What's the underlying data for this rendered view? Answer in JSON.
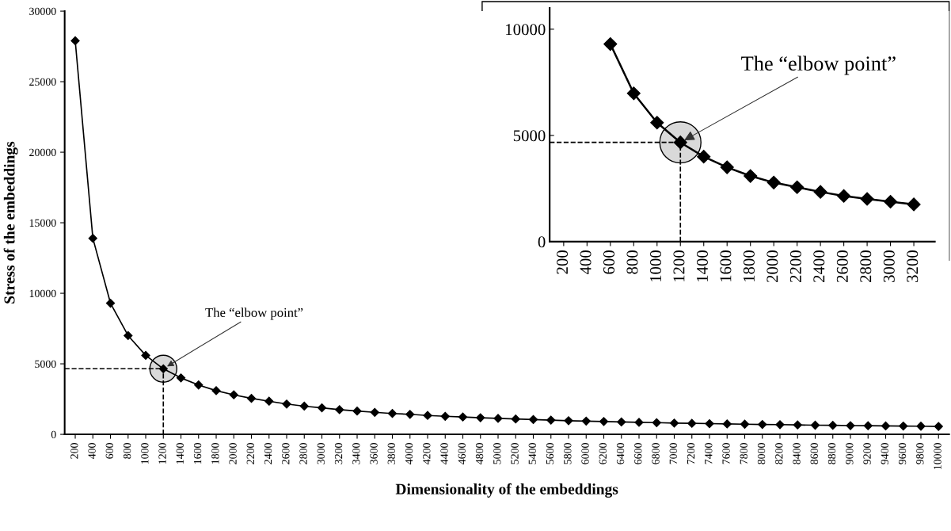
{
  "chart_data": [
    {
      "type": "line",
      "xlabel": "Dimensionality of the embeddings",
      "ylabel": "Stress of the embeddings",
      "categories": [
        "200",
        "400",
        "600",
        "800",
        "1000",
        "1200",
        "1400",
        "1600",
        "1800",
        "2000",
        "2200",
        "2400",
        "2600",
        "2800",
        "3000",
        "3200",
        "3400",
        "3600",
        "3800",
        "4000",
        "4200",
        "4400",
        "4600",
        "4800",
        "5000",
        "5200",
        "5400",
        "5600",
        "5800",
        "6000",
        "6200",
        "6400",
        "6600",
        "6800",
        "7000",
        "7200",
        "7400",
        "7600",
        "7800",
        "8000",
        "8200",
        "8400",
        "8600",
        "8800",
        "9000",
        "9200",
        "9400",
        "9600",
        "9800",
        "10000"
      ],
      "series": [
        {
          "color": "#000000",
          "values": [
            27900,
            13900,
            9300,
            7000,
            5600,
            4650,
            4000,
            3500,
            3100,
            2800,
            2550,
            2350,
            2150,
            2000,
            1880,
            1750,
            1650,
            1560,
            1480,
            1420,
            1340,
            1280,
            1230,
            1180,
            1130,
            1090,
            1050,
            1010,
            970,
            940,
            910,
            880,
            850,
            830,
            800,
            780,
            760,
            740,
            720,
            700,
            690,
            670,
            650,
            640,
            620,
            610,
            600,
            590,
            580,
            560
          ]
        }
      ],
      "ylim": [
        0,
        30000
      ],
      "yticks": [
        0,
        5000,
        10000,
        15000,
        20000,
        25000,
        30000
      ],
      "marker": "diamond",
      "line_style": "solid",
      "grid": false,
      "legend": false,
      "ref_lines": [
        {
          "axis": "x",
          "value": "1200",
          "line_style": "dashed",
          "color": "#000000"
        },
        {
          "axis": "y",
          "value": 4650,
          "line_style": "dashed",
          "color": "#000000"
        }
      ],
      "annotations": [
        {
          "text": "The “elbow point”",
          "x": "1200",
          "y": 4650
        }
      ]
    },
    {
      "type": "line",
      "categories": [
        "200",
        "400",
        "600",
        "800",
        "1000",
        "1200",
        "1400",
        "1600",
        "1800",
        "2000",
        "2200",
        "2400",
        "2600",
        "2800",
        "3000",
        "3200"
      ],
      "series": [
        {
          "color": "#000000",
          "values": [
            null,
            null,
            9300,
            6980,
            5600,
            4670,
            4000,
            3500,
            3090,
            2780,
            2560,
            2340,
            2150,
            2010,
            1880,
            1750
          ]
        }
      ],
      "ylim": [
        0,
        11000
      ],
      "yticks": [
        0,
        5000,
        10000
      ],
      "marker": "diamond",
      "line_style": "solid",
      "grid": false,
      "legend": false,
      "ref_lines": [
        {
          "axis": "x",
          "value": "1200",
          "line_style": "dashed",
          "color": "#000000"
        },
        {
          "axis": "y",
          "value": 4670,
          "line_style": "dashed",
          "color": "#000000"
        }
      ],
      "annotations": [
        {
          "text": "The “elbow point”",
          "x": "1200",
          "y": 4670
        }
      ]
    }
  ]
}
